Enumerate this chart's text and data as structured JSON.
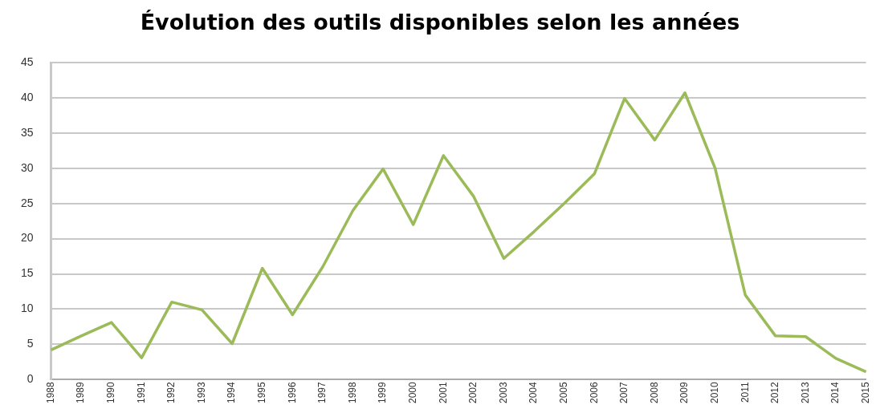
{
  "chart_data": {
    "type": "line",
    "title": "Évolution des outils disponibles selon les années",
    "categories": [
      "1988",
      "1989",
      "1990",
      "1991",
      "1992",
      "1993",
      "1994",
      "1995",
      "1996",
      "1997",
      "1998",
      "1999",
      "2000",
      "2001",
      "2002",
      "2003",
      "2004",
      "2005",
      "2006",
      "2007",
      "2008",
      "2009",
      "2010",
      "2011",
      "2012",
      "2013",
      "2014",
      "2015"
    ],
    "values": [
      4.2,
      6.2,
      8.1,
      3.1,
      11,
      9.9,
      5.1,
      15.8,
      9.2,
      16,
      24,
      29.9,
      22,
      31.8,
      26,
      17.2,
      21,
      25,
      29.2,
      39.9,
      34,
      40.7,
      30,
      12,
      6.2,
      6.1,
      3,
      1.1
    ],
    "color": "#9bbb59",
    "ylim": [
      0,
      45
    ],
    "yticks": [
      0,
      5,
      10,
      15,
      20,
      25,
      30,
      35,
      40,
      45
    ],
    "grid": "y",
    "legend": false,
    "marker": "none",
    "line_style": "solid"
  }
}
